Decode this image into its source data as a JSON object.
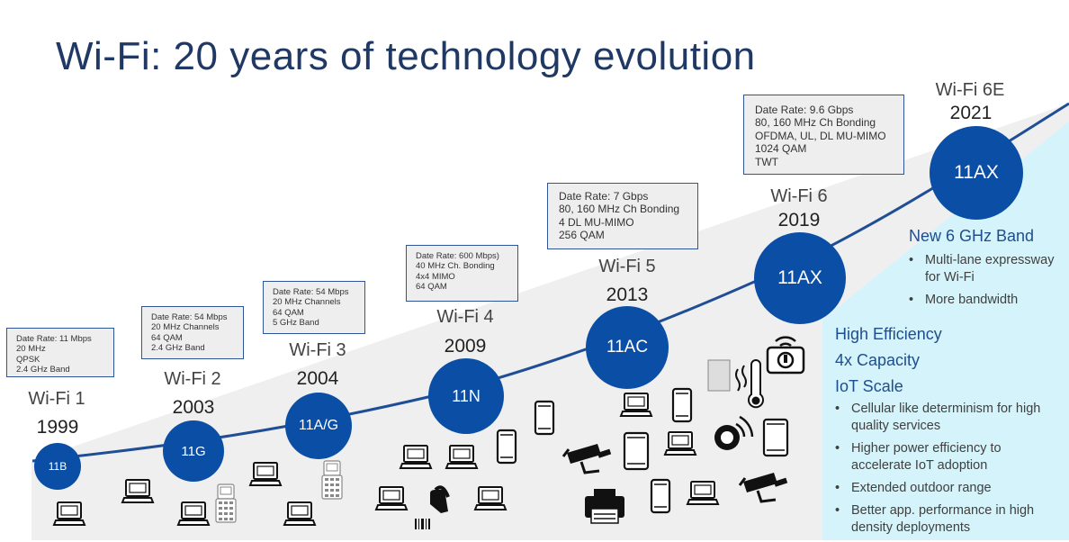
{
  "title": "Wi-Fi: 20 years of technology evolution",
  "generations": [
    {
      "name": "Wi-Fi 1",
      "year": "1999",
      "standard": "11B",
      "specs": [
        "Date Rate: 11 Mbps",
        "20 MHz",
        "QPSK",
        "2.4  GHz Band"
      ]
    },
    {
      "name": "Wi-Fi 2",
      "year": "2003",
      "standard": "11G",
      "specs": [
        "Date Rate: 54 Mbps",
        "20 MHz Channels",
        "64 QAM",
        "2.4  GHz Band"
      ]
    },
    {
      "name": "Wi-Fi 3",
      "year": "2004",
      "standard": "11A/G",
      "specs": [
        "Date Rate: 54 Mbps",
        "20 MHz Channels",
        "64 QAM",
        "5 GHz Band"
      ]
    },
    {
      "name": "Wi-Fi 4",
      "year": "2009",
      "standard": "11N",
      "specs": [
        "Date Rate: 600 Mbps)",
        "40 MHz Ch. Bonding",
        "4x4 MIMO",
        "64 QAM"
      ]
    },
    {
      "name": "Wi-Fi 5",
      "year": "2013",
      "standard": "11AC",
      "specs": [
        "Date Rate: 7 Gbps",
        "80, 160 MHz Ch Bonding",
        "4 DL MU-MIMO",
        "256 QAM"
      ]
    },
    {
      "name": "Wi-Fi 6",
      "year": "2019",
      "standard": "11AX",
      "specs": [
        "Date Rate: 9.6 Gbps",
        "80, 160 MHz Ch Bonding",
        "OFDMA, UL, DL MU-MIMO",
        "1024 QAM",
        "TWT"
      ]
    },
    {
      "name": "Wi-Fi 6E",
      "year": "2021",
      "standard": "11AX",
      "specs": []
    }
  ],
  "six_ghz": {
    "heading": "New 6 GHz Band",
    "bullets": [
      "Multi-lane expressway for Wi-Fi",
      "More bandwidth"
    ]
  },
  "efficiency": {
    "headings": [
      "High Efficiency",
      "4x Capacity",
      "IoT Scale"
    ],
    "bullets": [
      "Cellular like determinism for high quality services",
      "Higher power efficiency to accelerate IoT adoption",
      "Extended outdoor range",
      "Better app. performance in high density deployments"
    ]
  },
  "colors": {
    "circle": "#0a4ea6",
    "curve": "#1f4e96",
    "panel": "#d4f3fa",
    "ground": "#efefef",
    "title": "#1f3864"
  },
  "device_icons": [
    "laptop-icon",
    "barcode-scanner-icon",
    "smartphone-icon",
    "tablet-icon",
    "security-camera-icon",
    "printer-icon",
    "thermometer-icon",
    "smart-lock-icon",
    "smartwatch-icon",
    "wifi-sensor-icon",
    "door-sensor-icon",
    "rugged-handheld-icon"
  ]
}
